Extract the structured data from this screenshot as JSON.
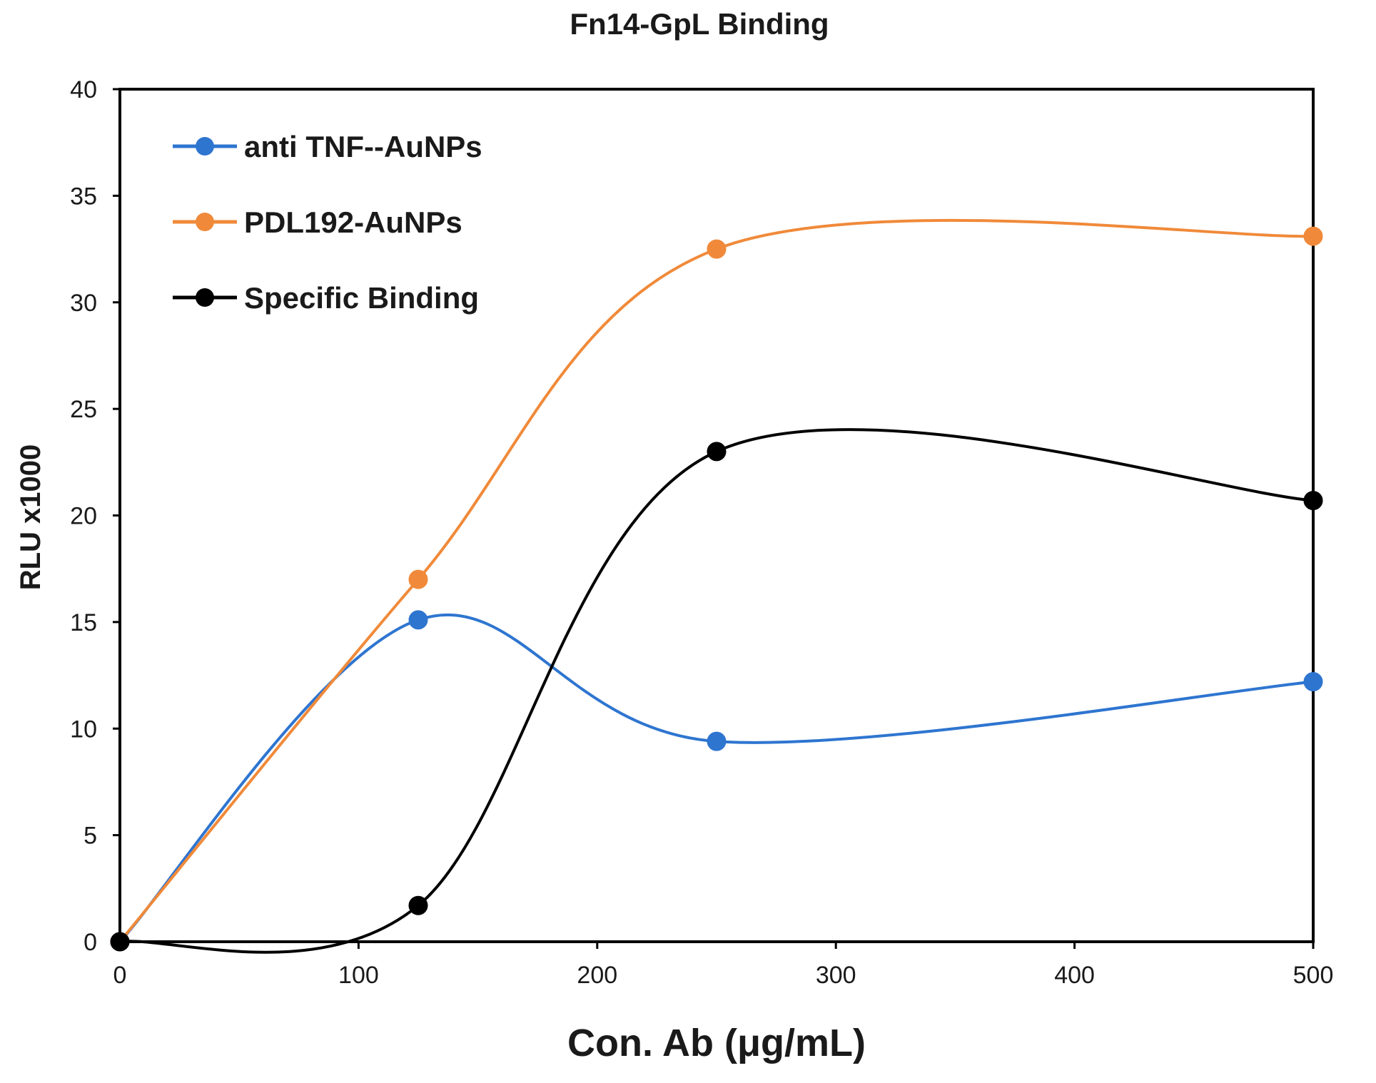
{
  "chart_data": {
    "type": "line",
    "title": "Fn14-GpL Binding",
    "xlabel": "Con. Ab (μg/mL)",
    "ylabel": "RLU   x1000",
    "xlim": [
      0,
      500
    ],
    "ylim": [
      0,
      40
    ],
    "xticks": [
      0,
      100,
      200,
      300,
      400,
      500
    ],
    "yticks": [
      0,
      5,
      10,
      15,
      20,
      25,
      30,
      35,
      40
    ],
    "grid": false,
    "legend_position": "top-left",
    "series": [
      {
        "name": "anti TNF--AuNPs",
        "color": "#2E75D0",
        "x": [
          0,
          125,
          250,
          500
        ],
        "y": [
          0,
          15.1,
          9.4,
          12.2
        ]
      },
      {
        "name": "PDL192-AuNPs",
        "color": "#F08A3A",
        "x": [
          0,
          125,
          250,
          500
        ],
        "y": [
          0,
          17.0,
          32.5,
          33.1
        ]
      },
      {
        "name": "Specific Binding",
        "color": "#000000",
        "x": [
          0,
          125,
          250,
          500
        ],
        "y": [
          0,
          1.7,
          23.0,
          20.7
        ]
      }
    ]
  }
}
